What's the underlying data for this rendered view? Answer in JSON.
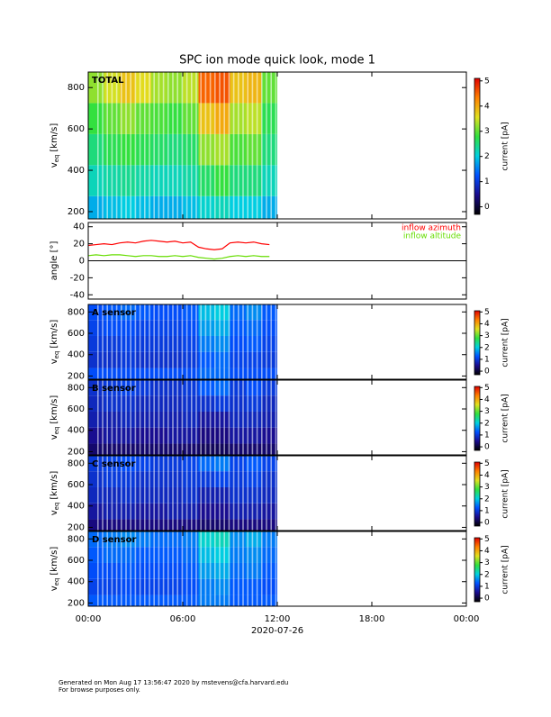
{
  "title": "SPC ion mode quick look, mode 1",
  "footer": [
    "Generated on Mon Aug 17 13:56:47 2020 by mstevens@cfa.harvard.edu",
    "For browse purposes only."
  ],
  "colormap": [
    "#000000",
    "#1a0a8c",
    "#0050ff",
    "#00d0e0",
    "#30e040",
    "#e0e020",
    "#ff8000",
    "#e00000"
  ],
  "xaxis": {
    "lim": [
      0,
      24
    ],
    "ticks": [
      {
        "value": 0,
        "label": "00:00"
      },
      {
        "value": 6,
        "label": "06:00"
      },
      {
        "value": 12,
        "label": "12:00"
      },
      {
        "value": 18,
        "label": "18:00"
      },
      {
        "value": 24,
        "label": "00:00"
      }
    ],
    "label": "2020-07-26"
  },
  "chart_data": [
    {
      "type": "heatmap",
      "label": "TOTAL",
      "ylabel": [
        "v",
        "eq",
        "[km/s]"
      ],
      "ylim": [
        165,
        875
      ],
      "yticks": [
        200,
        400,
        600,
        800
      ],
      "xbins": [
        0,
        1,
        2,
        3,
        4,
        5,
        6,
        7,
        8,
        9,
        10,
        11,
        12
      ],
      "ybins": [
        165,
        275,
        425,
        575,
        725,
        875
      ],
      "colorbar": {
        "label": "current [pA]",
        "lim": [
          -0.3,
          5.1
        ],
        "ticks": [
          0,
          1,
          2,
          3,
          4,
          5
        ]
      },
      "values": [
        [
          1.8,
          1.9,
          2.0,
          1.9,
          1.8,
          1.8,
          1.9,
          2.1,
          2.2,
          2.0,
          2.0,
          1.8
        ],
        [
          2.2,
          2.3,
          2.4,
          2.3,
          2.2,
          2.2,
          2.3,
          2.6,
          2.8,
          2.5,
          2.5,
          2.2
        ],
        [
          2.5,
          2.7,
          2.8,
          2.7,
          2.6,
          2.5,
          2.6,
          3.2,
          3.3,
          2.9,
          3.0,
          2.5
        ],
        [
          2.8,
          3.0,
          3.2,
          3.0,
          2.9,
          2.8,
          3.0,
          3.8,
          4.0,
          3.3,
          3.4,
          2.7
        ],
        [
          3.2,
          3.5,
          3.8,
          3.6,
          3.3,
          3.2,
          3.4,
          4.5,
          4.6,
          3.8,
          3.9,
          3.0
        ]
      ]
    },
    {
      "type": "line",
      "ylabel": "angle [°]",
      "ylim": [
        -45,
        45
      ],
      "yticks": [
        -40,
        -20,
        0,
        20,
        40
      ],
      "hline": 0,
      "legend": "upper right",
      "x": [
        0,
        0.5,
        1,
        1.5,
        2,
        2.5,
        3,
        3.5,
        4,
        4.5,
        5,
        5.5,
        6,
        6.5,
        7,
        7.5,
        8,
        8.5,
        9,
        9.5,
        10,
        10.5,
        11,
        11.5
      ],
      "series": [
        {
          "name": "inflow azimuth",
          "color": "#ff0000",
          "values": [
            18,
            19,
            20,
            19,
            21,
            22,
            21,
            23,
            24,
            23,
            22,
            23,
            21,
            22,
            16,
            14,
            13,
            14,
            21,
            22,
            21,
            22,
            20,
            19
          ]
        },
        {
          "name": "inflow altitude",
          "color": "#66dd00",
          "values": [
            6,
            7,
            6,
            7,
            7,
            6,
            5,
            6,
            6,
            5,
            5,
            6,
            5,
            6,
            4,
            3,
            2,
            3,
            5,
            6,
            5,
            6,
            5,
            5
          ]
        }
      ]
    },
    {
      "type": "heatmap",
      "label": "A sensor",
      "ylabel": [
        "v",
        "eq",
        "[km/s]"
      ],
      "ylim": [
        170,
        870
      ],
      "yticks": [
        200,
        400,
        600,
        800
      ],
      "xbins": [
        0,
        1,
        2,
        3,
        4,
        5,
        6,
        7,
        8,
        9,
        10,
        11,
        12
      ],
      "ybins": [
        170,
        275,
        425,
        575,
        725,
        870
      ],
      "colorbar": {
        "label": "current [pA]",
        "lim": [
          -0.3,
          5.1
        ],
        "ticks": [
          0,
          1,
          2,
          3,
          4,
          5
        ]
      },
      "values": [
        [
          1.2,
          1.2,
          1.2,
          1.2,
          1.2,
          1.2,
          1.2,
          1.4,
          1.4,
          1.2,
          1.2,
          1.2
        ],
        [
          0.9,
          0.9,
          1.0,
          0.9,
          0.9,
          0.9,
          1.0,
          1.3,
          1.4,
          1.1,
          1.1,
          1.0
        ],
        [
          1.0,
          1.0,
          1.1,
          1.0,
          1.0,
          1.0,
          1.1,
          1.5,
          1.6,
          1.2,
          1.3,
          1.1
        ],
        [
          1.1,
          1.2,
          1.2,
          1.1,
          1.1,
          1.1,
          1.2,
          1.7,
          1.8,
          1.3,
          1.4,
          1.2
        ],
        [
          1.2,
          1.3,
          1.4,
          1.3,
          1.2,
          1.2,
          1.3,
          1.9,
          2.0,
          1.4,
          1.6,
          1.3
        ]
      ]
    },
    {
      "type": "heatmap",
      "label": "B sensor",
      "ylabel": [
        "v",
        "eq",
        "[km/s]"
      ],
      "ylim": [
        170,
        870
      ],
      "yticks": [
        200,
        400,
        600,
        800
      ],
      "xbins": [
        0,
        1,
        2,
        3,
        4,
        5,
        6,
        7,
        8,
        9,
        10,
        11,
        12
      ],
      "ybins": [
        170,
        275,
        425,
        575,
        725,
        870
      ],
      "colorbar": {
        "label": "current [pA]",
        "lim": [
          -0.3,
          5.1
        ],
        "ticks": [
          0,
          1,
          2,
          3,
          4,
          5
        ]
      },
      "values": [
        [
          0.3,
          0.3,
          0.3,
          0.3,
          0.3,
          0.3,
          0.3,
          0.2,
          0.2,
          0.3,
          0.3,
          0.3
        ],
        [
          0.5,
          0.6,
          0.6,
          0.5,
          0.5,
          0.6,
          0.6,
          0.4,
          0.4,
          0.6,
          0.6,
          0.5
        ],
        [
          0.7,
          0.7,
          0.8,
          0.7,
          0.7,
          0.7,
          0.8,
          0.6,
          0.6,
          0.8,
          0.8,
          0.7
        ],
        [
          0.8,
          0.9,
          0.9,
          0.8,
          0.8,
          0.8,
          0.9,
          0.9,
          1.0,
          0.9,
          1.0,
          0.8
        ],
        [
          0.9,
          1.0,
          1.1,
          1.0,
          0.9,
          0.9,
          1.0,
          1.3,
          1.4,
          1.0,
          1.2,
          1.0
        ]
      ]
    },
    {
      "type": "heatmap",
      "label": "C sensor",
      "ylabel": [
        "v",
        "eq",
        "[km/s]"
      ],
      "ylim": [
        170,
        870
      ],
      "yticks": [
        200,
        400,
        600,
        800
      ],
      "xbins": [
        0,
        1,
        2,
        3,
        4,
        5,
        6,
        7,
        8,
        9,
        10,
        11,
        12
      ],
      "ybins": [
        170,
        275,
        425,
        575,
        725,
        870
      ],
      "colorbar": {
        "label": "current [pA]",
        "lim": [
          -0.3,
          5.1
        ],
        "ticks": [
          0,
          1,
          2,
          3,
          4,
          5
        ]
      },
      "values": [
        [
          0.4,
          0.4,
          0.4,
          0.4,
          0.4,
          0.4,
          0.4,
          0.3,
          0.3,
          0.4,
          0.4,
          0.4
        ],
        [
          0.6,
          0.7,
          0.7,
          0.6,
          0.6,
          0.7,
          0.7,
          0.5,
          0.5,
          0.7,
          0.7,
          0.6
        ],
        [
          0.8,
          0.8,
          0.9,
          0.8,
          0.8,
          0.8,
          0.9,
          0.7,
          0.7,
          0.9,
          0.9,
          0.8
        ],
        [
          0.9,
          1.0,
          1.0,
          0.9,
          0.9,
          0.9,
          1.0,
          1.0,
          1.1,
          1.0,
          1.1,
          0.9
        ],
        [
          1.0,
          1.1,
          1.2,
          1.1,
          1.0,
          1.0,
          1.1,
          1.4,
          1.5,
          1.1,
          1.3,
          1.1
        ]
      ]
    },
    {
      "type": "heatmap",
      "label": "D sensor",
      "ylabel": [
        "v",
        "eq",
        "[km/s]"
      ],
      "ylim": [
        170,
        870
      ],
      "yticks": [
        200,
        400,
        600,
        800
      ],
      "xbins": [
        0,
        1,
        2,
        3,
        4,
        5,
        6,
        7,
        8,
        9,
        10,
        11,
        12
      ],
      "ybins": [
        170,
        275,
        425,
        575,
        725,
        870
      ],
      "colorbar": {
        "label": "current [pA]",
        "lim": [
          -0.3,
          5.1
        ],
        "ticks": [
          0,
          1,
          2,
          3,
          4,
          5
        ]
      },
      "values": [
        [
          1.3,
          1.3,
          1.3,
          1.3,
          1.3,
          1.3,
          1.3,
          1.5,
          1.5,
          1.3,
          1.3,
          1.3
        ],
        [
          1.1,
          1.1,
          1.2,
          1.1,
          1.1,
          1.1,
          1.2,
          1.5,
          1.6,
          1.3,
          1.3,
          1.2
        ],
        [
          1.2,
          1.2,
          1.3,
          1.2,
          1.2,
          1.2,
          1.3,
          1.7,
          1.8,
          1.4,
          1.5,
          1.3
        ],
        [
          1.3,
          1.4,
          1.4,
          1.3,
          1.3,
          1.3,
          1.4,
          1.9,
          2.0,
          1.5,
          1.6,
          1.4
        ],
        [
          1.4,
          1.5,
          1.6,
          1.5,
          1.4,
          1.4,
          1.5,
          2.1,
          2.2,
          1.6,
          1.8,
          1.5
        ]
      ]
    }
  ]
}
